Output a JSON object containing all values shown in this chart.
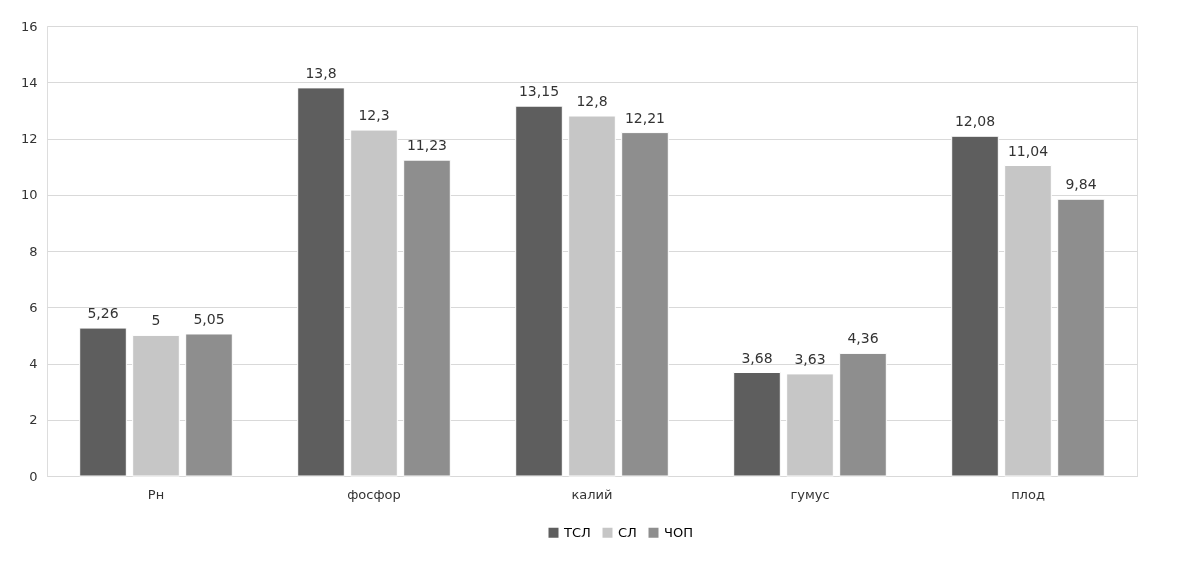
{
  "chart_data": {
    "type": "bar",
    "categories": [
      "Рн",
      "фосфор",
      "калий",
      "гумус",
      "плод"
    ],
    "series": [
      {
        "name": "ТСЛ",
        "color": "#5e5e5e",
        "values": [
          5.26,
          13.8,
          13.15,
          3.68,
          12.08
        ],
        "value_labels": [
          "5,26",
          "13,8",
          "13,15",
          "3,68",
          "12,08"
        ]
      },
      {
        "name": "СЛ",
        "color": "#c6c6c6",
        "values": [
          5,
          12.3,
          12.8,
          3.63,
          11.04
        ],
        "value_labels": [
          "5",
          "12,3",
          "12,8",
          "3,63",
          "11,04"
        ]
      },
      {
        "name": "ЧОП",
        "color": "#8e8e8e",
        "values": [
          5.05,
          11.23,
          12.21,
          4.36,
          9.84
        ],
        "value_labels": [
          "5,05",
          "11,23",
          "12,21",
          "4,36",
          "9,84"
        ]
      }
    ],
    "ylim": [
      0,
      16
    ],
    "yticks": [
      0,
      2,
      4,
      6,
      8,
      10,
      12,
      14,
      16
    ],
    "grid": "y",
    "legend": "bottom"
  }
}
